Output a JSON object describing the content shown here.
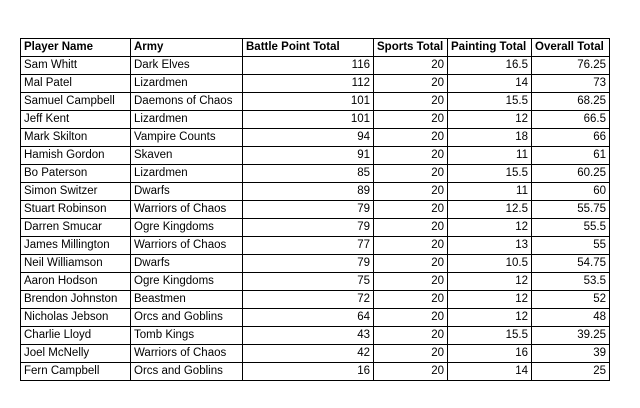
{
  "table": {
    "headers": [
      "Player Name",
      "Army",
      "Battle Point Total",
      "Sports Total",
      "Painting Total",
      "Overall Total"
    ],
    "rows": [
      [
        "Sam Whitt",
        "Dark Elves",
        "116",
        "20",
        "16.5",
        "76.25"
      ],
      [
        "Mal Patel",
        "Lizardmen",
        "112",
        "20",
        "14",
        "73"
      ],
      [
        "Samuel Campbell",
        "Daemons of Chaos",
        "101",
        "20",
        "15.5",
        "68.25"
      ],
      [
        "Jeff Kent",
        "Lizardmen",
        "101",
        "20",
        "12",
        "66.5"
      ],
      [
        "Mark Skilton",
        "Vampire Counts",
        "94",
        "20",
        "18",
        "66"
      ],
      [
        "Hamish Gordon",
        "Skaven",
        "91",
        "20",
        "11",
        "61"
      ],
      [
        "Bo Paterson",
        "Lizardmen",
        "85",
        "20",
        "15.5",
        "60.25"
      ],
      [
        "Simon Switzer",
        "Dwarfs",
        "89",
        "20",
        "11",
        "60"
      ],
      [
        "Stuart Robinson",
        "Warriors of Chaos",
        "79",
        "20",
        "12.5",
        "55.75"
      ],
      [
        "Darren Smucar",
        "Ogre Kingdoms",
        "79",
        "20",
        "12",
        "55.5"
      ],
      [
        "James Millington",
        "Warriors of Chaos",
        "77",
        "20",
        "13",
        "55"
      ],
      [
        "Neil Williamson",
        "Dwarfs",
        "79",
        "20",
        "10.5",
        "54.75"
      ],
      [
        "Aaron Hodson",
        "Ogre Kingdoms",
        "75",
        "20",
        "12",
        "53.5"
      ],
      [
        "Brendon Johnston",
        "Beastmen",
        "72",
        "20",
        "12",
        "52"
      ],
      [
        "Nicholas Jebson",
        "Orcs and Goblins",
        "64",
        "20",
        "12",
        "48"
      ],
      [
        "Charlie Lloyd",
        "Tomb Kings",
        "43",
        "20",
        "15.5",
        "39.25"
      ],
      [
        "Joel McNelly",
        "Warriors of Chaos",
        "42",
        "20",
        "16",
        "39"
      ],
      [
        "Fern Campbell",
        "Orcs and Goblins",
        "16",
        "20",
        "14",
        "25"
      ]
    ]
  }
}
